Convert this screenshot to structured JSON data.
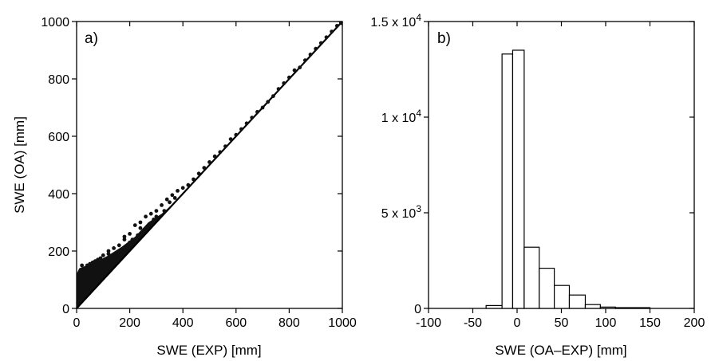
{
  "chart_data": [
    {
      "type": "scatter",
      "panel_label": "a)",
      "xlabel": "SWE (EXP) [mm]",
      "ylabel": "SWE (OA) [mm]",
      "xlim": [
        0,
        1000
      ],
      "ylim": [
        0,
        1000
      ],
      "xticks": [
        "0",
        "200",
        "400",
        "600",
        "800",
        "1000"
      ],
      "yticks": [
        "0",
        "200",
        "400",
        "600",
        "800",
        "1000"
      ],
      "points": [
        [
          5,
          20
        ],
        [
          10,
          60
        ],
        [
          15,
          110
        ],
        [
          20,
          150
        ],
        [
          30,
          140
        ],
        [
          40,
          150
        ],
        [
          50,
          155
        ],
        [
          60,
          160
        ],
        [
          70,
          165
        ],
        [
          80,
          170
        ],
        [
          90,
          175
        ],
        [
          100,
          185
        ],
        [
          120,
          190
        ],
        [
          140,
          210
        ],
        [
          160,
          220
        ],
        [
          180,
          240
        ],
        [
          200,
          260
        ],
        [
          220,
          290
        ],
        [
          240,
          300
        ],
        [
          260,
          320
        ],
        [
          280,
          330
        ],
        [
          300,
          340
        ],
        [
          320,
          360
        ],
        [
          340,
          380
        ],
        [
          360,
          395
        ],
        [
          380,
          410
        ],
        [
          400,
          420
        ],
        [
          420,
          430
        ],
        [
          440,
          450
        ],
        [
          460,
          470
        ],
        [
          480,
          490
        ],
        [
          500,
          510
        ],
        [
          520,
          530
        ],
        [
          540,
          545
        ],
        [
          560,
          565
        ],
        [
          580,
          590
        ],
        [
          600,
          605
        ],
        [
          620,
          625
        ],
        [
          640,
          645
        ],
        [
          660,
          665
        ],
        [
          680,
          685
        ],
        [
          700,
          700
        ],
        [
          720,
          720
        ],
        [
          740,
          740
        ],
        [
          760,
          765
        ],
        [
          780,
          785
        ],
        [
          800,
          805
        ],
        [
          820,
          830
        ],
        [
          840,
          840
        ],
        [
          860,
          865
        ],
        [
          880,
          885
        ],
        [
          900,
          905
        ],
        [
          920,
          925
        ],
        [
          940,
          945
        ],
        [
          960,
          965
        ],
        [
          980,
          985
        ],
        [
          995,
          995
        ],
        [
          100,
          130
        ],
        [
          150,
          180
        ],
        [
          200,
          230
        ],
        [
          250,
          270
        ],
        [
          300,
          320
        ],
        [
          350,
          370
        ],
        [
          120,
          200
        ],
        [
          180,
          250
        ],
        [
          240,
          280
        ],
        [
          290,
          310
        ],
        [
          330,
          340
        ],
        [
          370,
          385
        ],
        [
          60,
          120
        ],
        [
          80,
          140
        ],
        [
          110,
          160
        ],
        [
          130,
          170
        ],
        [
          170,
          200
        ],
        [
          190,
          210
        ],
        [
          210,
          240
        ],
        [
          230,
          255
        ],
        [
          20,
          80
        ],
        [
          25,
          100
        ],
        [
          35,
          120
        ],
        [
          45,
          130
        ],
        [
          55,
          140
        ],
        [
          65,
          150
        ],
        [
          75,
          155
        ],
        [
          85,
          160
        ],
        [
          95,
          165
        ],
        [
          105,
          170
        ]
      ]
    },
    {
      "type": "bar",
      "panel_label": "b)",
      "xlabel": "SWE (OA–EXP) [mm]",
      "xlim": [
        -100,
        200
      ],
      "ylim": [
        0,
        15000
      ],
      "xticks": [
        "-100",
        "-50",
        "0",
        "50",
        "100",
        "150",
        "200"
      ],
      "yticks": [
        {
          "base": "0",
          "exp": ""
        },
        {
          "base": "5 x 10",
          "exp": "3"
        },
        {
          "base": "1 x 10",
          "exp": "4"
        },
        {
          "base": "1.5 x 10",
          "exp": "4"
        }
      ],
      "bins": [
        {
          "x0": -35,
          "x1": -17,
          "count": 150
        },
        {
          "x0": -17,
          "x1": -5,
          "count": 13300
        },
        {
          "x0": -5,
          "x1": 8,
          "count": 13500
        },
        {
          "x0": 8,
          "x1": 25,
          "count": 3200
        },
        {
          "x0": 25,
          "x1": 42,
          "count": 2100
        },
        {
          "x0": 42,
          "x1": 59,
          "count": 1200
        },
        {
          "x0": 59,
          "x1": 77,
          "count": 700
        },
        {
          "x0": 77,
          "x1": 94,
          "count": 200
        },
        {
          "x0": 94,
          "x1": 111,
          "count": 70
        },
        {
          "x0": 111,
          "x1": 150,
          "count": 40
        }
      ]
    }
  ]
}
